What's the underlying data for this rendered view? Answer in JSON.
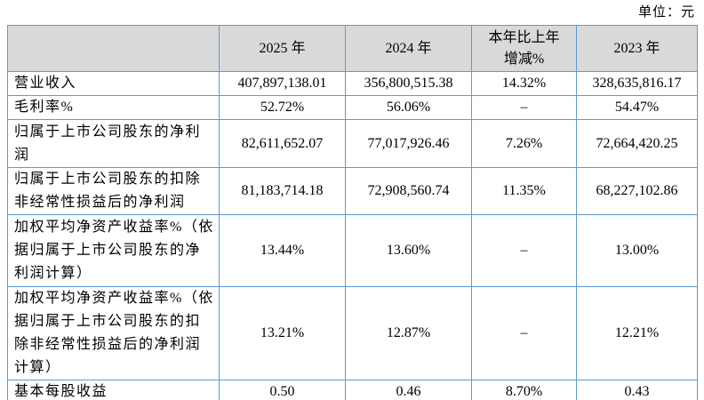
{
  "unit_label": "单位：元",
  "colors": {
    "table_border": "#5b9bd5",
    "header_background": "#d9d9d9",
    "body_background": "#ffffff",
    "text": "#000000"
  },
  "table": {
    "headers": [
      "",
      "2025 年",
      "2024 年",
      "本年比上年\n增减%",
      "2023 年"
    ],
    "rows": [
      {
        "label": "营业收入",
        "y2025": "407,897,138.01",
        "y2024": "356,800,515.38",
        "change": "14.32%",
        "y2023": "328,635,816.17"
      },
      {
        "label": "毛利率%",
        "y2025": "52.72%",
        "y2024": "56.06%",
        "change": "–",
        "y2023": "54.47%"
      },
      {
        "label": "归属于上市公司股东的净利润",
        "y2025": "82,611,652.07",
        "y2024": "77,017,926.46",
        "change": "7.26%",
        "y2023": "72,664,420.25"
      },
      {
        "label": "归属于上市公司股东的扣除非经常性损益后的净利润",
        "y2025": "81,183,714.18",
        "y2024": "72,908,560.74",
        "change": "11.35%",
        "y2023": "68,227,102.86"
      },
      {
        "label": "加权平均净资产收益率%（依据归属于上市公司股东的净利润计算）",
        "y2025": "13.44%",
        "y2024": "13.60%",
        "change": "–",
        "y2023": "13.00%"
      },
      {
        "label": "加权平均净资产收益率%（依据归属于上市公司股东的扣除非经常性损益后的净利润计算）",
        "y2025": "13.21%",
        "y2024": "12.87%",
        "change": "–",
        "y2023": "12.21%"
      },
      {
        "label": "基本每股收益",
        "y2025": "0.50",
        "y2024": "0.46",
        "change": "8.70%",
        "y2023": "0.43"
      }
    ]
  }
}
